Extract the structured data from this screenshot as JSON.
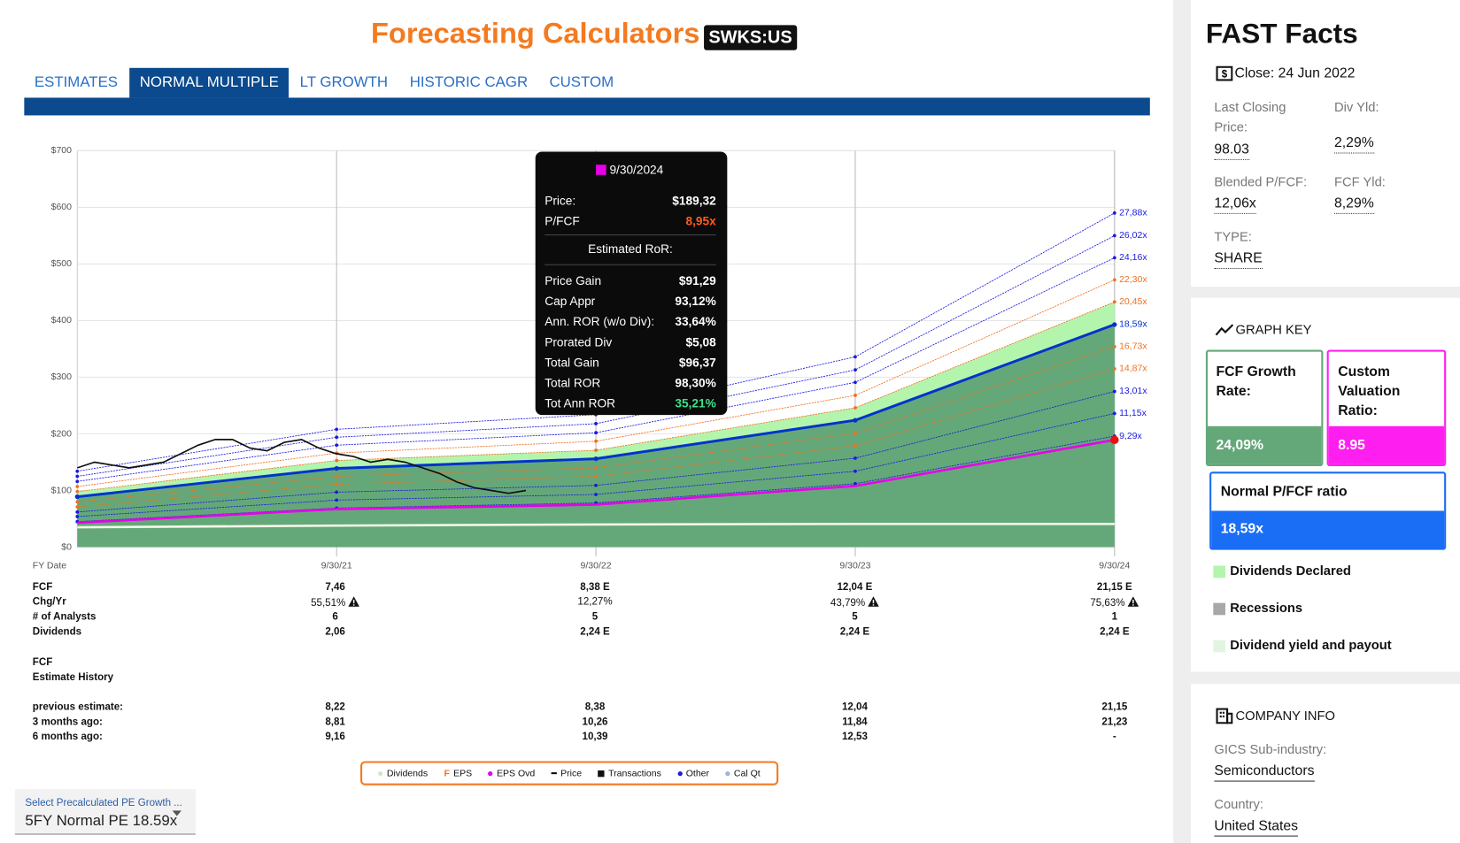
{
  "header": {
    "title": "Forecasting Calculators",
    "ticker": "SWKS:US"
  },
  "tabs": [
    {
      "label": "ESTIMATES",
      "active": false
    },
    {
      "label": "NORMAL MULTIPLE",
      "active": true
    },
    {
      "label": "LT GROWTH",
      "active": false
    },
    {
      "label": "HISTORIC CAGR",
      "active": false
    },
    {
      "label": "CUSTOM",
      "active": false
    }
  ],
  "chart_data": {
    "type": "line",
    "x_label": "FY Date",
    "categories": [
      null,
      "9/30/21",
      "9/30/22",
      "9/30/23",
      "9/30/24"
    ],
    "ylim": [
      0,
      700
    ],
    "yticks": [
      {
        "value": 0,
        "label": "$0"
      },
      {
        "value": 100,
        "label": "$100"
      },
      {
        "value": 200,
        "label": "$200"
      },
      {
        "value": 300,
        "label": "$300"
      },
      {
        "value": 400,
        "label": "$400"
      },
      {
        "value": 500,
        "label": "$500"
      },
      {
        "value": 600,
        "label": "$600"
      },
      {
        "value": 700,
        "label": "$700"
      }
    ],
    "grid": true,
    "series": [
      {
        "name": "27,88x",
        "color": "#1a1ae0",
        "values": [
          134,
          208,
          234,
          336,
          590
        ]
      },
      {
        "name": "26,02x",
        "color": "#1a1ae0",
        "values": [
          125,
          194,
          218,
          313,
          550
        ]
      },
      {
        "name": "24,16x",
        "color": "#1a1ae0",
        "values": [
          116,
          180,
          202,
          291,
          511
        ]
      },
      {
        "name": "22,30x",
        "color": "#f07020",
        "values": [
          107,
          166,
          187,
          268,
          472
        ]
      },
      {
        "name": "20,45x",
        "color": "#f07020",
        "values": [
          98,
          153,
          171,
          246,
          433
        ],
        "fill_to_next": "#b4f5ad"
      },
      {
        "name": "18,59x",
        "color": "#0033cc",
        "values": [
          89,
          139,
          156,
          224,
          393
        ],
        "highlight": true,
        "fill_below": "#64a87a"
      },
      {
        "name": "16,73x",
        "color": "#f07020",
        "values": [
          80,
          125,
          140,
          201,
          354
        ]
      },
      {
        "name": "14,87x",
        "color": "#f07020",
        "values": [
          71,
          111,
          125,
          179,
          315
        ]
      },
      {
        "name": "13,01x",
        "color": "#1a1ae0",
        "values": [
          62,
          97,
          109,
          157,
          275
        ]
      },
      {
        "name": "11,15x",
        "color": "#1a1ae0",
        "values": [
          54,
          83,
          93,
          134,
          236
        ]
      },
      {
        "name": "9,29x",
        "color": "#1a1ae0",
        "values": [
          45,
          69,
          78,
          112,
          196
        ]
      }
    ],
    "custom_line": {
      "color": "#e800e8",
      "end_color": "#e81010",
      "values": [
        43,
        67,
        75,
        108,
        189.32
      ]
    },
    "dividend_line": {
      "color": "#f2f7e6",
      "values": [
        35,
        38,
        40,
        41,
        41
      ]
    },
    "price_line": {
      "color": "#111111",
      "values": [
        140,
        150,
        145,
        140,
        145,
        150,
        165,
        180,
        190,
        190,
        175,
        170,
        185,
        190,
        175,
        165,
        160,
        150,
        155,
        150,
        140,
        130,
        115,
        105,
        100,
        95,
        100
      ]
    }
  },
  "tooltip": {
    "date": "9/30/2024",
    "rows": [
      {
        "label": "Price:",
        "value": "$189,32",
        "color": "#ffffff"
      },
      {
        "label": "P/FCF",
        "value": "8,95x",
        "color": "#ff5a1f"
      }
    ],
    "section": "Estimated RoR:",
    "ror_rows": [
      {
        "label": "Price Gain",
        "value": "$91,29",
        "color": "#ffffff"
      },
      {
        "label": "Cap Appr",
        "value": "93,12%",
        "color": "#ffffff"
      },
      {
        "label": "Ann. ROR (w/o Div):",
        "value": "33,64%",
        "color": "#ffffff"
      },
      {
        "label": "Prorated Div",
        "value": "$5,08",
        "color": "#ffffff"
      },
      {
        "label": "Total Gain",
        "value": "$96,37",
        "color": "#ffffff"
      },
      {
        "label": "Total ROR",
        "value": "98,30%",
        "color": "#ffffff"
      },
      {
        "label": "Tot Ann ROR",
        "value": "35,21%",
        "color": "#3de08a"
      }
    ]
  },
  "table": {
    "rows": [
      {
        "label": "FCF",
        "values": [
          "7,46",
          "8,38 E",
          "12,04 E",
          "21,15 E"
        ]
      },
      {
        "label": "Chg/Yr",
        "values": [
          "55,51%",
          "12,27%",
          "43,79%",
          "75,63%"
        ],
        "warnings": [
          true,
          false,
          true,
          true
        ]
      },
      {
        "label": "# of Analysts",
        "values": [
          "6",
          "5",
          "5",
          "1"
        ]
      },
      {
        "label": "Dividends",
        "values": [
          "2,06",
          "2,24 E",
          "2,24 E",
          "2,24 E"
        ]
      }
    ],
    "history_title": [
      "FCF",
      "Estimate History"
    ],
    "history_rows": [
      {
        "label": "previous estimate:",
        "values": [
          "8,22",
          "8,38",
          "12,04",
          "21,15"
        ]
      },
      {
        "label": "3 months ago:",
        "values": [
          "8,81",
          "10,26",
          "11,84",
          "21,23"
        ]
      },
      {
        "label": "6 months ago:",
        "values": [
          "9,16",
          "10,39",
          "12,53",
          "-"
        ]
      }
    ]
  },
  "legend_items": [
    {
      "label": "Dividends",
      "color": "#cfe8c8",
      "marker": "dot"
    },
    {
      "label": "EPS",
      "color": "#f07020",
      "marker": "text",
      "glyph": "F"
    },
    {
      "label": "EPS Ovd",
      "color": "#e800e8",
      "marker": "dot"
    },
    {
      "label": "Price",
      "color": "#111111",
      "marker": "dash"
    },
    {
      "label": "Transactions",
      "color": "#111111",
      "marker": "square"
    },
    {
      "label": "Other",
      "color": "#1a1ae0",
      "marker": "dot"
    },
    {
      "label": "Cal Qt",
      "color": "#9ab6d8",
      "marker": "dot"
    }
  ],
  "dropdown": {
    "label": "Select Precalculated PE Growth ...",
    "value": "5FY Normal PE 18.59x"
  },
  "facts": {
    "title": "FAST Facts",
    "close": "Close: 24 Jun 2022",
    "items": [
      {
        "label": "Last Closing Price:",
        "value": "98.03"
      },
      {
        "label": "Div Yld:",
        "value": "2,29%"
      },
      {
        "label": "Blended P/FCF:",
        "value": "12,06x"
      },
      {
        "label": "FCF Yld:",
        "value": "8,29%"
      },
      {
        "label": "TYPE:",
        "value": "SHARE"
      }
    ]
  },
  "graph_key": {
    "title": "GRAPH KEY",
    "growth": {
      "label": "FCF Growth Rate:",
      "value": "24,09%"
    },
    "custom": {
      "label": "Custom Valuation Ratio:",
      "value": "8.95"
    },
    "normal": {
      "label": "Normal P/FCF ratio",
      "value": "18,59x"
    },
    "keys": [
      {
        "label": "Dividends Declared",
        "color": "#b4f5ad"
      },
      {
        "label": "Recessions",
        "color": "#a8a8a8"
      },
      {
        "label": "Dividend yield and payout",
        "color": "#e3f5e0"
      }
    ]
  },
  "company": {
    "title": "COMPANY INFO",
    "items": [
      {
        "label": "GICS Sub-industry:",
        "value": "Semiconductors"
      },
      {
        "label": "Country:",
        "value": "United States"
      }
    ]
  }
}
